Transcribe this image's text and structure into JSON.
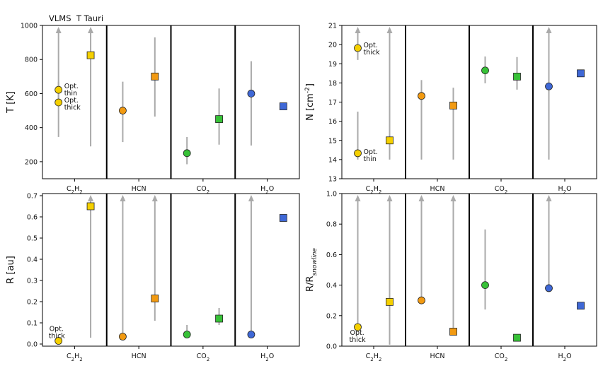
{
  "legend": {
    "vlms": "VLMS",
    "ttauri": "T Tauri"
  },
  "molecules": [
    {
      "key": "C2H2",
      "main": "C",
      "sub1": "2",
      "mid": "H",
      "sub2": "2"
    },
    {
      "key": "HCN",
      "main": "HCN",
      "sub1": "",
      "mid": "",
      "sub2": ""
    },
    {
      "key": "CO2",
      "main": "CO",
      "sub1": "2",
      "mid": "",
      "sub2": ""
    },
    {
      "key": "H2O",
      "main": "H",
      "sub1": "2",
      "mid": "O",
      "sub2": ""
    }
  ],
  "colors": {
    "C2H2": "#f5d000",
    "HCN": "#f29a11",
    "CO2": "#37c137",
    "H2O": "#3f68d6",
    "range_line": "#aaaaaa"
  },
  "chart_data": [
    {
      "type": "scatter",
      "ylabel": "T [K]",
      "ylim": [
        100,
        1000
      ],
      "yticks": [
        200,
        400,
        600,
        800,
        1000
      ],
      "markers": [
        {
          "mol": "C2H2",
          "sample": "VLMS",
          "label": "Opt. thin",
          "y": 622,
          "range": [
            570,
            670
          ],
          "arrow": false
        },
        {
          "mol": "C2H2",
          "sample": "VLMS",
          "label": "Opt. thick",
          "y": 548,
          "range": [
            345,
            1000
          ],
          "arrow": true
        },
        {
          "mol": "C2H2",
          "sample": "T Tauri",
          "y": 825,
          "range": [
            290,
            1000
          ],
          "arrow": true
        },
        {
          "mol": "HCN",
          "sample": "VLMS",
          "y": 500,
          "range": [
            315,
            670
          ],
          "arrow": false
        },
        {
          "mol": "HCN",
          "sample": "T Tauri",
          "y": 700,
          "range": [
            465,
            930
          ],
          "arrow": false
        },
        {
          "mol": "CO2",
          "sample": "VLMS",
          "y": 250,
          "range": [
            185,
            345
          ],
          "arrow": false
        },
        {
          "mol": "CO2",
          "sample": "T Tauri",
          "y": 450,
          "range": [
            300,
            630
          ],
          "arrow": false
        },
        {
          "mol": "H2O",
          "sample": "VLMS",
          "y": 600,
          "range": [
            295,
            790
          ],
          "arrow": false
        },
        {
          "mol": "H2O",
          "sample": "T Tauri",
          "y": 525,
          "range": [
            510,
            540
          ],
          "arrow": false
        }
      ],
      "annotations": [
        {
          "line1": "Opt.",
          "line2": "thin",
          "mol": "C2H2",
          "y": 622
        },
        {
          "line1": "Opt.",
          "line2": "thick",
          "mol": "C2H2",
          "y": 548
        }
      ]
    },
    {
      "type": "scatter",
      "ylabel": "N [cm^-2]",
      "ylim": [
        13,
        21
      ],
      "yticks": [
        13,
        14,
        15,
        16,
        17,
        18,
        19,
        20,
        21
      ],
      "markers": [
        {
          "mol": "C2H2",
          "sample": "VLMS",
          "label": "Opt. thick",
          "y": 19.82,
          "range": [
            19.2,
            21
          ],
          "arrow": true
        },
        {
          "mol": "C2H2",
          "sample": "VLMS",
          "label": "Opt. thin",
          "y": 14.33,
          "range": [
            14.0,
            16.5
          ],
          "arrow": false
        },
        {
          "mol": "C2H2",
          "sample": "T Tauri",
          "y": 15.0,
          "range": [
            14.0,
            21
          ],
          "arrow": true
        },
        {
          "mol": "HCN",
          "sample": "VLMS",
          "y": 17.32,
          "range": [
            14.0,
            18.15
          ],
          "arrow": false
        },
        {
          "mol": "HCN",
          "sample": "T Tauri",
          "y": 16.82,
          "range": [
            14.0,
            17.75
          ],
          "arrow": false
        },
        {
          "mol": "CO2",
          "sample": "VLMS",
          "y": 18.65,
          "range": [
            17.98,
            19.38
          ],
          "arrow": false
        },
        {
          "mol": "CO2",
          "sample": "T Tauri",
          "y": 18.33,
          "range": [
            17.65,
            19.35
          ],
          "arrow": false
        },
        {
          "mol": "H2O",
          "sample": "VLMS",
          "y": 17.82,
          "range": [
            14.0,
            21
          ],
          "arrow": true
        },
        {
          "mol": "H2O",
          "sample": "T Tauri",
          "y": 18.5,
          "range": [
            18.45,
            18.55
          ],
          "arrow": false
        }
      ],
      "annotations": [
        {
          "line1": "Opt.",
          "line2": "thick",
          "mol": "C2H2",
          "y": 19.82
        },
        {
          "line1": "Opt.",
          "line2": "thin",
          "mol": "C2H2",
          "y": 14.33
        }
      ]
    },
    {
      "type": "scatter",
      "ylabel": "R [au]",
      "ylim": [
        -0.01,
        0.71
      ],
      "yticks": [
        0.0,
        0.1,
        0.2,
        0.3,
        0.4,
        0.5,
        0.6,
        0.7
      ],
      "markers": [
        {
          "mol": "C2H2",
          "sample": "VLMS",
          "label": "Opt. thick",
          "y": 0.015,
          "range": null,
          "arrow": false
        },
        {
          "mol": "C2H2",
          "sample": "T Tauri",
          "y": 0.65,
          "range": [
            0.03,
            0.71
          ],
          "arrow": true
        },
        {
          "mol": "HCN",
          "sample": "VLMS",
          "y": 0.035,
          "range": [
            0.035,
            0.71
          ],
          "arrow": true
        },
        {
          "mol": "HCN",
          "sample": "T Tauri",
          "y": 0.215,
          "range": [
            0.11,
            0.71
          ],
          "arrow": true
        },
        {
          "mol": "CO2",
          "sample": "VLMS",
          "y": 0.045,
          "range": [
            0.03,
            0.09
          ],
          "arrow": false
        },
        {
          "mol": "CO2",
          "sample": "T Tauri",
          "y": 0.12,
          "range": [
            0.09,
            0.17
          ],
          "arrow": false
        },
        {
          "mol": "H2O",
          "sample": "VLMS",
          "y": 0.045,
          "range": [
            0.045,
            0.71
          ],
          "arrow": true
        },
        {
          "mol": "H2O",
          "sample": "T Tauri",
          "y": 0.595,
          "range": null,
          "arrow": false
        }
      ],
      "annotations": [
        {
          "line1": "Opt.",
          "line2": "thick",
          "mol": "C2H2",
          "y": 0.015
        }
      ]
    },
    {
      "type": "scatter",
      "ylabel": "R/R_snowline",
      "ylim": [
        0.0,
        1.0
      ],
      "yticks": [
        0.0,
        0.2,
        0.4,
        0.6,
        0.8,
        1.0
      ],
      "markers": [
        {
          "mol": "C2H2",
          "sample": "VLMS",
          "label": "Opt. thick",
          "y": 0.125,
          "range": [
            0.125,
            1.0
          ],
          "arrow": true
        },
        {
          "mol": "C2H2",
          "sample": "T Tauri",
          "y": 0.29,
          "range": [
            0.01,
            1.0
          ],
          "arrow": true
        },
        {
          "mol": "HCN",
          "sample": "VLMS",
          "y": 0.3,
          "range": [
            0.3,
            1.0
          ],
          "arrow": true
        },
        {
          "mol": "HCN",
          "sample": "T Tauri",
          "y": 0.095,
          "range": [
            0.095,
            1.0
          ],
          "arrow": true
        },
        {
          "mol": "CO2",
          "sample": "VLMS",
          "y": 0.4,
          "range": [
            0.24,
            0.765
          ],
          "arrow": false
        },
        {
          "mol": "CO2",
          "sample": "T Tauri",
          "y": 0.055,
          "range": null,
          "arrow": false
        },
        {
          "mol": "H2O",
          "sample": "VLMS",
          "y": 0.38,
          "range": [
            0.38,
            1.0
          ],
          "arrow": true
        },
        {
          "mol": "H2O",
          "sample": "T Tauri",
          "y": 0.265,
          "range": null,
          "arrow": false
        }
      ],
      "annotations": [
        {
          "line1": "Opt.",
          "line2": "thick",
          "mol": "C2H2",
          "y": 0.125
        }
      ]
    }
  ]
}
